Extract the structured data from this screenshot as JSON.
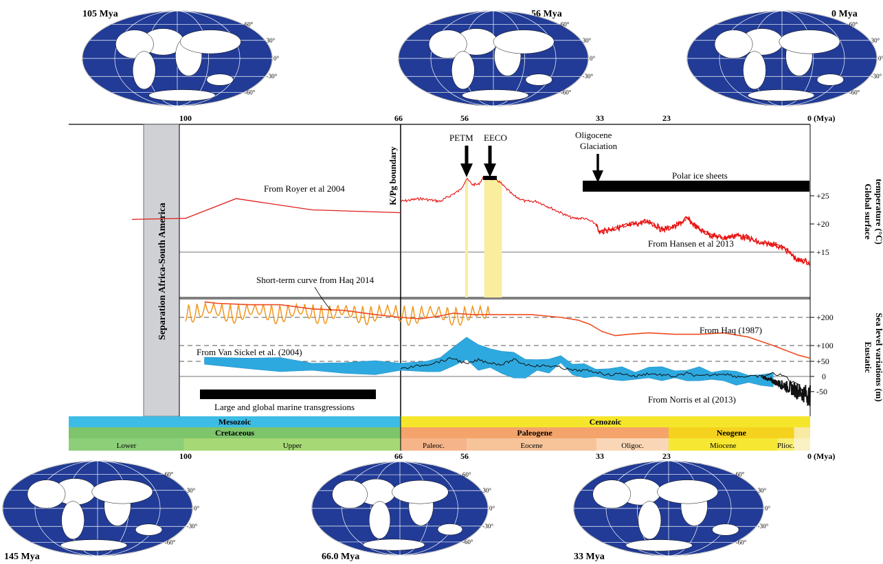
{
  "maps": [
    {
      "label": "105 Mya",
      "lat_labels": [
        "60°",
        "30°",
        "0°",
        "-30°",
        "-60°"
      ]
    },
    {
      "label": "56 Mya",
      "lat_labels": [
        "60°",
        "30°",
        "0°",
        "-30°",
        "-60°"
      ]
    },
    {
      "label": "0 Mya",
      "lat_labels": [
        "60°",
        "30°",
        "0°",
        "-30°",
        "-60°"
      ]
    },
    {
      "label": "145 Mya",
      "lat_labels": [
        "60°",
        "30°",
        "0°",
        "-30°",
        "-60°"
      ]
    },
    {
      "label": "66.0 Mya",
      "lat_labels": [
        "60°",
        "30°",
        "0°",
        "-30°",
        "-60°"
      ]
    },
    {
      "label": "33 Mya",
      "lat_labels": [
        "60°",
        "30°",
        "0°",
        "-30°",
        "-60°"
      ]
    }
  ],
  "chart_data": {
    "type": "line",
    "x_unit": "Mya",
    "top_ticks": [
      {
        "value": 100,
        "label": "100"
      },
      {
        "value": 66,
        "label": "66"
      },
      {
        "value": 56,
        "label": "56"
      },
      {
        "value": 33,
        "label": "33"
      },
      {
        "value": 23,
        "label": "23"
      },
      {
        "value": 0,
        "label": "0 (Mya)"
      }
    ],
    "bottom_ticks": [
      {
        "value": 100,
        "label": "100"
      },
      {
        "value": 66,
        "label": "66"
      },
      {
        "value": 56,
        "label": "56"
      },
      {
        "value": 33,
        "label": "33"
      },
      {
        "value": 23,
        "label": "23"
      },
      {
        "value": 0,
        "label": "0 (Mya)"
      }
    ],
    "temperature_panel": {
      "ylabel": "Global surface temperature (°C)",
      "ticks": [
        {
          "value": 25,
          "label": "+25"
        },
        {
          "value": 20,
          "label": "+20"
        },
        {
          "value": 15,
          "label": "+15"
        }
      ],
      "royer": {
        "name": "From Royer et al 2004",
        "x": [
          141,
          100,
          92,
          80,
          66
        ],
        "y": [
          20.8,
          21,
          24.5,
          22.5,
          22
        ]
      },
      "hansen": {
        "name": "From Hansen et al 2013",
        "x": [
          66,
          63,
          60,
          57,
          56,
          55,
          54,
          53,
          52,
          51,
          50,
          48,
          46,
          44,
          42,
          40,
          38,
          36,
          34,
          33.5,
          32,
          30,
          28,
          26,
          24,
          22,
          20,
          18,
          16,
          14,
          12,
          10,
          8,
          6,
          4,
          3,
          2,
          1,
          0
        ],
        "y": [
          24,
          24.5,
          24,
          26,
          28,
          27,
          27,
          28.5,
          28,
          28,
          27,
          25,
          24,
          24,
          23,
          22,
          21,
          21,
          20,
          18.5,
          19,
          19.5,
          20,
          20.5,
          19,
          19.5,
          21,
          19,
          18,
          17.5,
          18,
          17.5,
          16.5,
          16.5,
          15.5,
          14.5,
          13.5,
          13.5,
          13
        ]
      }
    },
    "sea_level_panel": {
      "ylabel": "Eustatic Sea level variations (m)",
      "ticks": [
        {
          "value": 200,
          "label": "+200"
        },
        {
          "value": 100,
          "label": "+100"
        },
        {
          "value": 50,
          "label": "+50"
        },
        {
          "value": 0,
          "label": "0"
        },
        {
          "value": -50,
          "label": "-50"
        }
      ],
      "haq1987": {
        "name": "From Haq (1987)",
        "x": [
          97,
          95,
          90,
          85,
          80,
          75,
          70,
          66,
          63,
          60,
          58,
          55,
          50,
          45,
          40,
          37,
          35,
          33,
          31,
          29,
          26,
          22,
          18,
          14,
          10,
          6,
          2,
          0
        ],
        "y": [
          255,
          250,
          245,
          245,
          230,
          225,
          210,
          200,
          195,
          205,
          215,
          210,
          210,
          210,
          200,
          190,
          175,
          150,
          135,
          140,
          145,
          140,
          140,
          145,
          130,
          100,
          70,
          60
        ]
      },
      "haq2014": {
        "name": "Short-term curve from Haq 2014",
        "x_range": [
          100,
          52
        ],
        "y_range": [
          130,
          260
        ]
      },
      "van_sickel": {
        "name": "From Van Sickel et al. (2004)",
        "x": [
          97,
          90,
          85,
          80,
          75,
          70,
          66,
          62,
          60,
          58,
          56,
          54,
          52,
          50,
          48,
          46,
          44,
          42,
          40,
          38,
          36,
          34,
          32,
          30,
          28,
          26,
          24,
          22,
          20,
          18,
          16,
          14,
          12,
          10,
          8,
          6
        ],
        "y": [
          50,
          40,
          35,
          30,
          25,
          25,
          30,
          30,
          35,
          60,
          85,
          55,
          55,
          40,
          30,
          20,
          35,
          30,
          55,
          20,
          15,
          10,
          5,
          5,
          0,
          10,
          5,
          5,
          0,
          5,
          0,
          0,
          -10,
          -10,
          -15,
          -15
        ]
      },
      "norris": {
        "name": "From Norris et al (2013)",
        "x": [
          66,
          62,
          58,
          56,
          54,
          52,
          50,
          48,
          46,
          44,
          42,
          40,
          38,
          36,
          34,
          32,
          30,
          28,
          26,
          24,
          22,
          20,
          18,
          16,
          14,
          12,
          10,
          8,
          6,
          4,
          3,
          2,
          1,
          0
        ],
        "y": [
          25,
          40,
          60,
          40,
          55,
          45,
          40,
          55,
          40,
          35,
          35,
          30,
          20,
          20,
          15,
          5,
          10,
          0,
          10,
          5,
          0,
          10,
          0,
          5,
          10,
          0,
          0,
          0,
          10,
          0,
          -20,
          -20,
          -60,
          -70
        ]
      }
    },
    "events": [
      {
        "label": "PETM",
        "x": 56
      },
      {
        "label": "EECO",
        "x_range": [
          53,
          50
        ]
      },
      {
        "label": "Oligocene Glaciation",
        "x": 33
      }
    ],
    "annotations": {
      "kpg": "K/Pg boundary",
      "separation": "Separation Africa-South America",
      "polar": "Polar ice sheets",
      "transgressions": "Large and global marine transgressions"
    },
    "timescale": {
      "eras": [
        {
          "label": "Mesozoic",
          "range": [
            107,
            66
          ],
          "color": "#3dbde6"
        },
        {
          "label": "Cenozoic",
          "range": [
            66,
            0
          ],
          "color": "#f5e62b"
        }
      ],
      "periods": [
        {
          "label": "Cretaceous",
          "range": [
            107,
            66
          ],
          "color": "#7dc46a"
        },
        {
          "label": "Paleogene",
          "range": [
            66,
            23
          ],
          "color": "#f4a46a"
        },
        {
          "label": "Neogene",
          "range": [
            23,
            2.6
          ],
          "color": "#f5d21e"
        },
        {
          "label": "",
          "range": [
            2.6,
            0
          ],
          "color": "#f8eaa0"
        }
      ],
      "epochs": [
        {
          "label": "Lower",
          "range": [
            107,
            100.5
          ],
          "color": "#8ccf78"
        },
        {
          "label": "Upper",
          "range": [
            100.5,
            66
          ],
          "color": "#a6d875"
        },
        {
          "label": "Paleoc.",
          "range": [
            66,
            56
          ],
          "color": "#f6b48a"
        },
        {
          "label": "Eocene",
          "range": [
            56,
            33.9
          ],
          "color": "#f7c49a"
        },
        {
          "label": "Oligoc.",
          "range": [
            33.9,
            23
          ],
          "color": "#f9d7b6"
        },
        {
          "label": "Miocene",
          "range": [
            23,
            5.3
          ],
          "color": "#f6e832"
        },
        {
          "label": "Plioc.",
          "range": [
            5.3,
            2.6
          ],
          "color": "#f7ee6e"
        },
        {
          "label": "",
          "range": [
            2.6,
            0
          ],
          "color": "#faf2c4"
        }
      ]
    }
  }
}
